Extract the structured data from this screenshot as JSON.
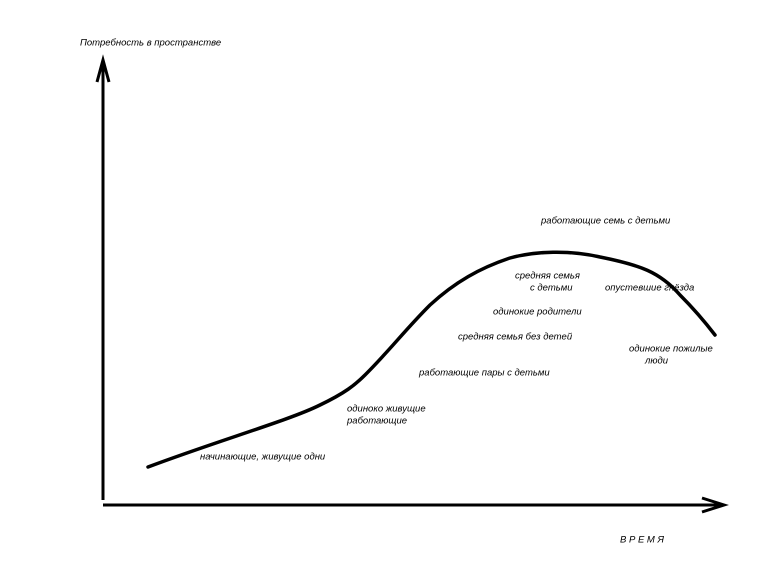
{
  "y_axis_label": "Потребность в пространстве",
  "x_axis_label": "В Р Е М Я",
  "stages": [
    {
      "lines": [
        "работающие семь с детьми"
      ]
    },
    {
      "lines": [
        "средняя семья",
        "с детьми"
      ]
    },
    {
      "lines": [
        "опустевшие гнёзда"
      ]
    },
    {
      "lines": [
        "одинокие родители"
      ]
    },
    {
      "lines": [
        "средняя семья без детей"
      ]
    },
    {
      "lines": [
        "одинокие пожилые",
        "люди"
      ]
    },
    {
      "lines": [
        "работающие пары с детьми"
      ]
    },
    {
      "lines": [
        "одиноко живущие",
        "работающие"
      ]
    },
    {
      "lines": [
        "начинающие, живущие одни"
      ]
    }
  ]
}
